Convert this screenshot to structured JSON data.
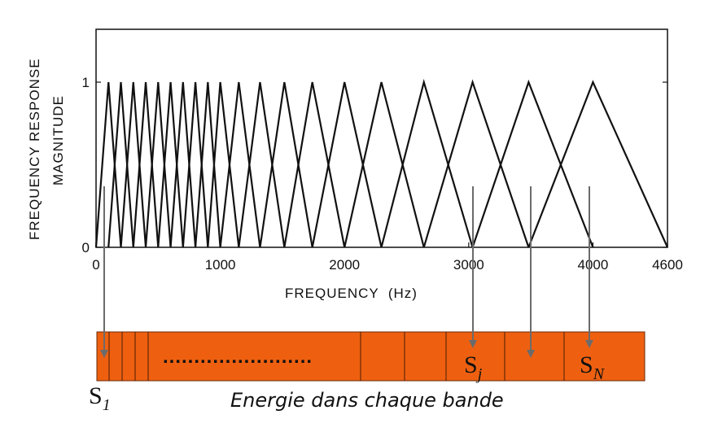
{
  "chart_data": {
    "type": "line",
    "ylabel_line1": "FREQUENCY RESPONSE",
    "ylabel_line2": "MAGNITUDE",
    "xlabel": "FREQUENCY  (Hz)",
    "xlim": [
      0,
      4600
    ],
    "ylim": [
      0,
      1.3
    ],
    "x_ticks": [
      "0",
      "1000",
      "2000",
      "3000",
      "4000",
      "4600"
    ],
    "x_tick_values": [
      0,
      1000,
      2000,
      3000,
      4000,
      4600
    ],
    "y_ticks": [
      "0",
      "1"
    ],
    "y_tick_values": [
      0,
      1
    ],
    "filter_edges_hz": [
      0,
      100,
      200,
      300,
      400,
      500,
      600,
      700,
      800,
      900,
      1000,
      1149,
      1320,
      1516,
      1741,
      2000,
      2297,
      2639,
      3031,
      3482,
      4000,
      4600
    ]
  },
  "filter_bank": {
    "band_color": "#ee6010",
    "arrow_color": "#6b6b6b",
    "dotted_text": "........................",
    "labels": [
      {
        "main": "S",
        "sub": "1"
      },
      {
        "main": "S",
        "sub": "j"
      },
      {
        "main": "S",
        "sub": "N"
      }
    ],
    "caption": "Energie dans chaque bande"
  }
}
